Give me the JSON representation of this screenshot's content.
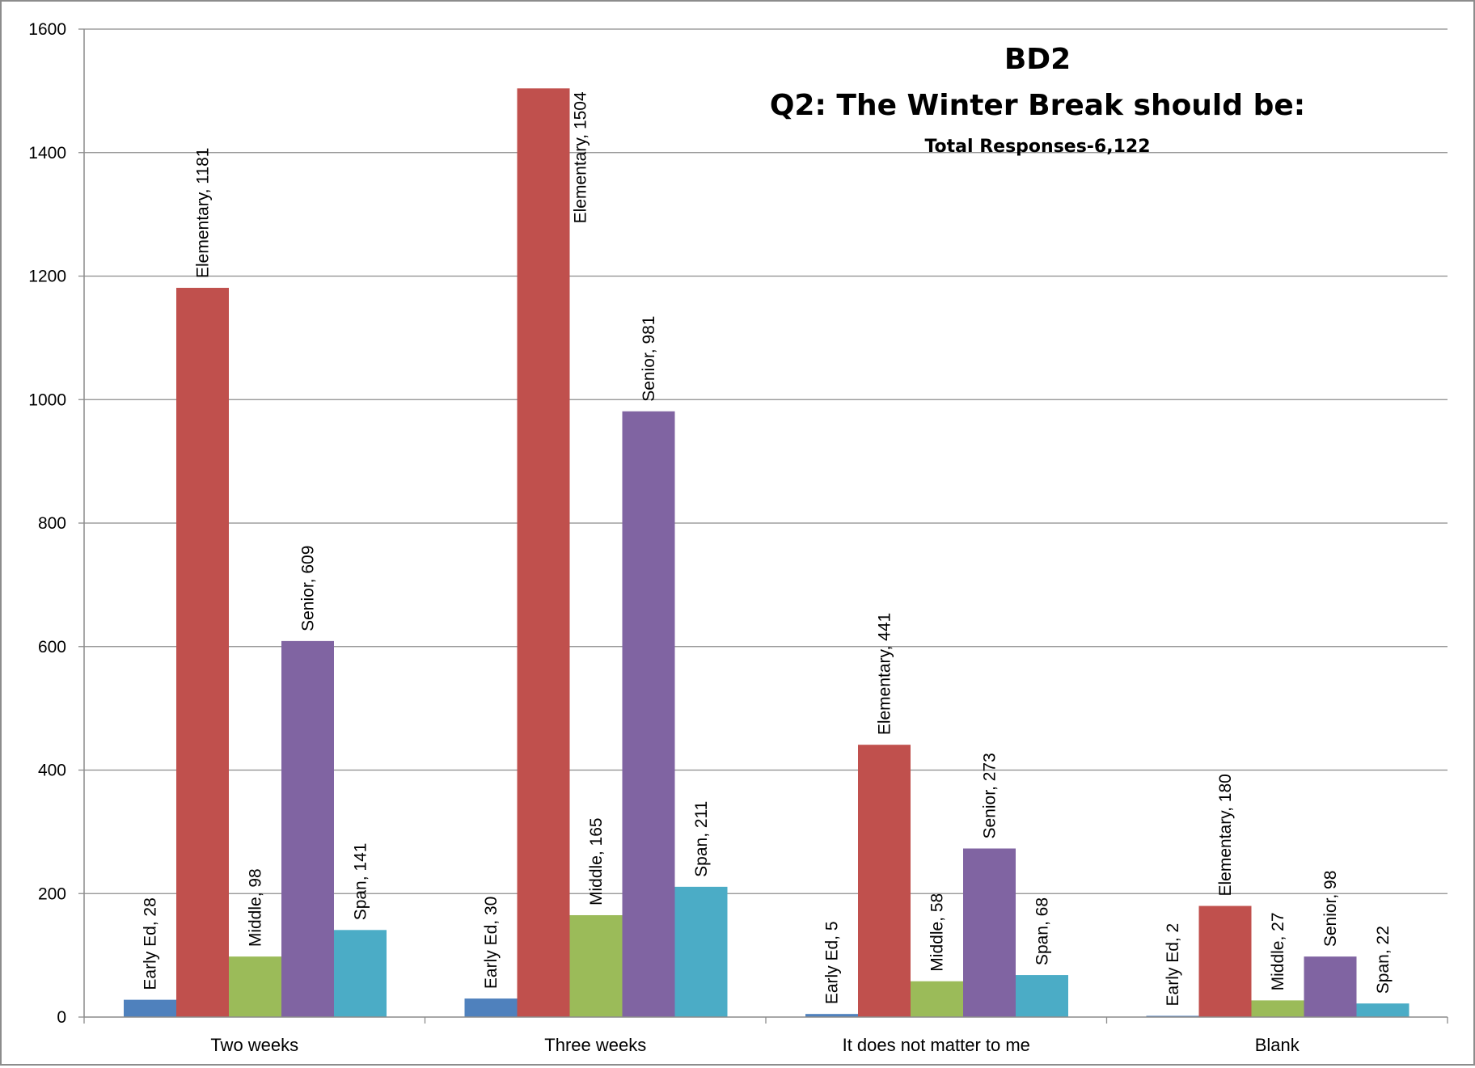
{
  "chart_data": {
    "type": "bar",
    "title": "BD2",
    "subtitle": "Q2: The Winter Break should be:",
    "note": "Total Responses-6,122",
    "xlabel": "",
    "ylabel": "",
    "ylim": [
      0,
      1600
    ],
    "yticks": [
      0,
      200,
      400,
      600,
      800,
      1000,
      1200,
      1400,
      1600
    ],
    "grid": true,
    "categories": [
      "Two weeks",
      "Three weeks",
      "It does not matter to me",
      "Blank"
    ],
    "series": [
      {
        "name": "Early Ed",
        "color": "#4f81bd",
        "values": [
          28,
          30,
          5,
          2
        ]
      },
      {
        "name": "Elementary",
        "color": "#c0504d",
        "values": [
          1181,
          1504,
          441,
          180
        ]
      },
      {
        "name": "Middle",
        "color": "#9bbb59",
        "values": [
          98,
          165,
          58,
          27
        ]
      },
      {
        "name": "Senior",
        "color": "#8064a2",
        "values": [
          609,
          981,
          273,
          98
        ]
      },
      {
        "name": "Span",
        "color": "#4bacc6",
        "values": [
          141,
          211,
          68,
          22
        ]
      }
    ],
    "data_labels": [
      [
        "Early Ed, 28",
        "Elementary, 1181",
        "Middle, 98",
        "Senior, 609",
        "Span, 141"
      ],
      [
        "Early Ed, 30",
        "Elementary, 1504",
        "Middle, 165",
        "Senior, 981",
        "Span, 211"
      ],
      [
        "Early Ed, 5",
        "Elementary, 441",
        "Middle, 58",
        "Senior, 273",
        "Span, 68"
      ],
      [
        "Early Ed, 2",
        "Elementary, 180",
        "Middle, 27",
        "Senior, 98",
        "Span, 22"
      ]
    ],
    "yticklabels": [
      "0",
      "200",
      "400",
      "600",
      "800",
      "1000",
      "1200",
      "1400",
      "1600"
    ]
  }
}
